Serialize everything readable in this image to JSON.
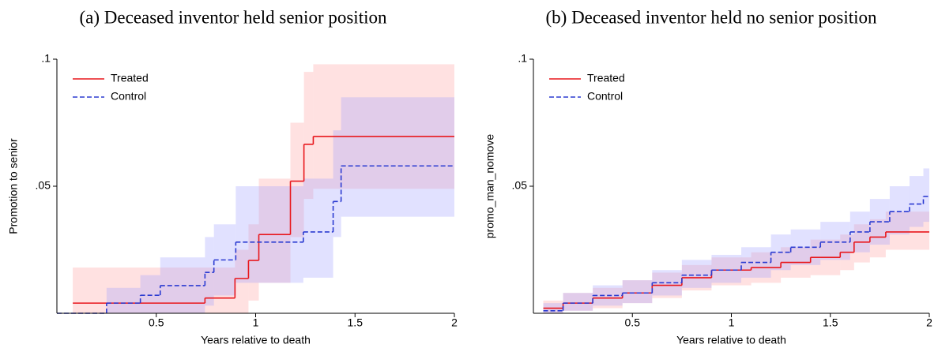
{
  "chart_data": [
    {
      "type": "step",
      "title": "(a) Deceased inventor held senior position",
      "x_label": "Years relative to death",
      "y_label": "Promotion to senior",
      "xlim": [
        0,
        2
      ],
      "ylim": [
        0,
        0.1
      ],
      "xticks": [
        0.5,
        1,
        1.5,
        2
      ],
      "yticks": [
        {
          "value": 0.05,
          "label": ".05"
        },
        {
          "value": 0.1,
          "label": ".1"
        }
      ],
      "legend": "upper left",
      "series": [
        {
          "name": "Treated",
          "color": "#e8171c",
          "band_color": "#ff9a9a",
          "dashed": false,
          "x": [
            0.08,
            0.745,
            0.896,
            0.964,
            1.016,
            1.175,
            1.243,
            1.29
          ],
          "values": [
            0.004,
            0.006,
            0.0137,
            0.0208,
            0.031,
            0.052,
            0.0665,
            0.0696
          ],
          "lower": [
            0,
            0,
            0,
            0.005,
            0.012,
            0.03,
            0.045,
            0.049
          ],
          "upper": [
            0.018,
            0.018,
            0.025,
            0.035,
            0.053,
            0.075,
            0.095,
            0.098
          ]
        },
        {
          "name": "Control",
          "color": "#2b3bd1",
          "band_color": "#9a9aff",
          "dashed": true,
          "x": [
            0,
            0.25,
            0.42,
            0.52,
            0.745,
            0.79,
            0.9,
            1.24,
            1.39,
            1.43
          ],
          "values": [
            0,
            0.004,
            0.0071,
            0.0109,
            0.0161,
            0.021,
            0.028,
            0.032,
            0.044,
            0.058
          ],
          "lower": [
            0,
            0,
            0,
            0,
            0.003,
            0.007,
            0.012,
            0.014,
            0.03,
            0.038
          ],
          "upper": [
            0,
            0.01,
            0.015,
            0.022,
            0.03,
            0.035,
            0.05,
            0.053,
            0.072,
            0.085
          ]
        }
      ]
    },
    {
      "type": "step",
      "title": "(b) Deceased inventor held no senior position",
      "x_label": "Years relative to death",
      "y_label": "promo_man_nomove",
      "xlim": [
        0,
        2
      ],
      "ylim": [
        0,
        0.1
      ],
      "xticks": [
        0.5,
        1,
        1.5,
        2
      ],
      "yticks": [
        {
          "value": 0.05,
          "label": ".05"
        },
        {
          "value": 0.1,
          "label": ".1"
        }
      ],
      "legend": "upper left",
      "series": [
        {
          "name": "Treated",
          "color": "#e8171c",
          "band_color": "#ff9a9a",
          "dashed": false,
          "x": [
            0.05,
            0.15,
            0.3,
            0.45,
            0.6,
            0.75,
            0.9,
            1.1,
            1.25,
            1.4,
            1.55,
            1.62,
            1.7,
            1.78
          ],
          "values": [
            0.002,
            0.004,
            0.006,
            0.008,
            0.011,
            0.014,
            0.017,
            0.018,
            0.02,
            0.022,
            0.024,
            0.028,
            0.03,
            0.032
          ],
          "lower": [
            0,
            0.001,
            0.002,
            0.004,
            0.006,
            0.009,
            0.011,
            0.012,
            0.014,
            0.015,
            0.017,
            0.02,
            0.022,
            0.025
          ],
          "upper": [
            0.005,
            0.008,
            0.01,
            0.013,
            0.016,
            0.019,
            0.022,
            0.024,
            0.026,
            0.029,
            0.031,
            0.035,
            0.037,
            0.04
          ]
        },
        {
          "name": "Control",
          "color": "#2b3bd1",
          "band_color": "#9a9aff",
          "dashed": true,
          "x": [
            0.05,
            0.15,
            0.3,
            0.45,
            0.6,
            0.75,
            0.9,
            1.05,
            1.2,
            1.3,
            1.45,
            1.6,
            1.7,
            1.8,
            1.9,
            1.97
          ],
          "values": [
            0.001,
            0.004,
            0.007,
            0.008,
            0.012,
            0.015,
            0.017,
            0.02,
            0.024,
            0.026,
            0.028,
            0.032,
            0.036,
            0.04,
            0.043,
            0.046
          ],
          "lower": [
            0,
            0.001,
            0.003,
            0.004,
            0.007,
            0.01,
            0.012,
            0.014,
            0.017,
            0.019,
            0.021,
            0.024,
            0.027,
            0.031,
            0.034,
            0.036
          ],
          "upper": [
            0.004,
            0.008,
            0.011,
            0.013,
            0.017,
            0.021,
            0.023,
            0.026,
            0.031,
            0.033,
            0.036,
            0.04,
            0.045,
            0.05,
            0.054,
            0.057
          ]
        }
      ]
    }
  ]
}
